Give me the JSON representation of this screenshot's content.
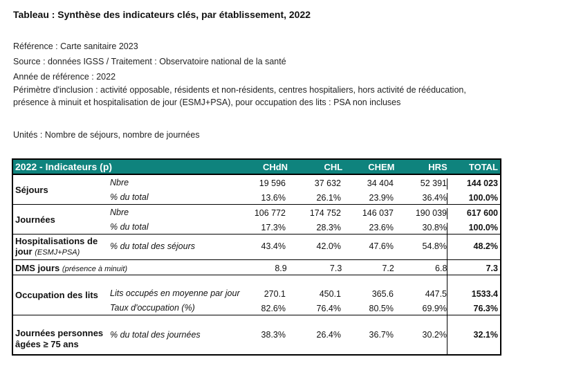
{
  "title": "Tableau : Synthèse des indicateurs clés, par établissement, 2022",
  "meta": {
    "reference": "Référence : Carte sanitaire 2023",
    "source": "Source : données IGSS / Traitement : Observatoire national de la santé",
    "annee": "Année de référence : 2022",
    "perimetre": "Périmètre d'inclusion : activité opposable, résidents et non-résidents, centres hospitaliers, hors activité de rééducation, présence à minuit et hospitalisation de jour (ESMJ+PSA), pour occupation des lits : PSA non incluses",
    "unites": "Unités : Nombre de séjours, nombre de journées"
  },
  "table": {
    "header": {
      "label": "2022 - Indicateurs (p)",
      "cols": [
        "CHdN",
        "CHL",
        "CHEM",
        "HRS",
        "TOTAL"
      ]
    },
    "sejours": {
      "label": "Séjours",
      "rows": [
        {
          "sub": "Nbre",
          "vals": [
            "19 596",
            "37 632",
            "34 404",
            "52 391",
            "144 023"
          ]
        },
        {
          "sub": "% du total",
          "vals": [
            "13.6%",
            "26.1%",
            "23.9%",
            "36.4%",
            "100.0%"
          ]
        }
      ]
    },
    "journees": {
      "label": "Journées",
      "rows": [
        {
          "sub": "Nbre",
          "vals": [
            "106 772",
            "174 752",
            "146 037",
            "190 039",
            "617 600"
          ]
        },
        {
          "sub": "% du total",
          "vals": [
            "17.3%",
            "28.3%",
            "23.6%",
            "30.8%",
            "100.0%"
          ]
        }
      ]
    },
    "hospit": {
      "label": "Hospitalisations de jour",
      "label_note": "(ESMJ+PSA)",
      "rows": [
        {
          "sub": "% du total des séjours",
          "vals": [
            "43.4%",
            "42.0%",
            "47.6%",
            "54.8%",
            "48.2%"
          ]
        }
      ]
    },
    "dms": {
      "label": "DMS jours",
      "label_note": "(présence à minuit)",
      "vals": [
        "8.9",
        "7.3",
        "7.2",
        "6.8",
        "7.3"
      ]
    },
    "occupation": {
      "label": "Occupation des lits",
      "rows": [
        {
          "sub": "Lits occupés en moyenne par jour",
          "vals": [
            "270.1",
            "450.1",
            "365.6",
            "447.5",
            "1533.4"
          ]
        },
        {
          "sub": "Taux d'occupation (%)",
          "vals": [
            "82.6%",
            "76.4%",
            "80.5%",
            "69.9%",
            "76.3%"
          ]
        }
      ]
    },
    "agees": {
      "label": "Journées personnes âgées ≥ 75 ans",
      "rows": [
        {
          "sub": "% du total des journées",
          "vals": [
            "38.3%",
            "26.4%",
            "36.7%",
            "30.2%",
            "32.1%"
          ]
        }
      ]
    }
  }
}
